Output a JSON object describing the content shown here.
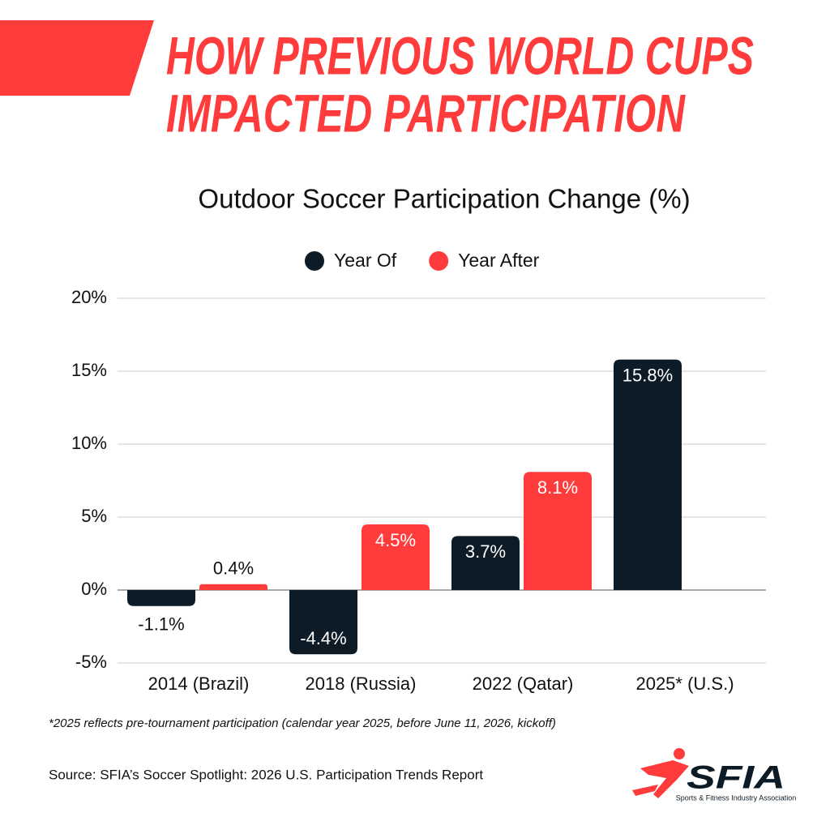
{
  "header": {
    "title_lines": [
      "HOW PREVIOUS WORLD CUPS",
      "IMPACTED PARTICIPATION"
    ]
  },
  "chart_data": {
    "type": "bar",
    "title": "Outdoor Soccer Participation Change (%)",
    "categories": [
      "2014 (Brazil)",
      "2018 (Russia)",
      "2022 (Qatar)",
      "2025* (U.S.)"
    ],
    "series": [
      {
        "name": "Year Of",
        "color": "#0d1b26",
        "values": [
          -1.1,
          -4.4,
          3.7,
          15.8
        ],
        "value_labels": [
          "-1.1%",
          "-4.4%",
          "3.7%",
          "15.8%"
        ]
      },
      {
        "name": "Year After",
        "color": "#ff3b3b",
        "values": [
          0.4,
          4.5,
          8.1,
          null
        ],
        "value_labels": [
          "0.4%",
          "4.5%",
          "8.1%",
          null
        ]
      }
    ],
    "ylim": [
      -5,
      20
    ],
    "yticks": [
      {
        "value": -5,
        "label": "-5%"
      },
      {
        "value": 0,
        "label": "0%"
      },
      {
        "value": 5,
        "label": "5%"
      },
      {
        "value": 10,
        "label": "10%"
      },
      {
        "value": 15,
        "label": "15%"
      },
      {
        "value": 20,
        "label": "20%"
      }
    ],
    "grid": true
  },
  "footnote": "*2025 reflects pre-tournament participation (calendar year 2025, before June 11, 2026, kickoff)",
  "source": "Source: SFIA’s Soccer Spotlight: 2026 U.S. Participation Trends Report",
  "logo": {
    "name": "SFIA",
    "tagline": "Sports & Fitness Industry Association"
  }
}
